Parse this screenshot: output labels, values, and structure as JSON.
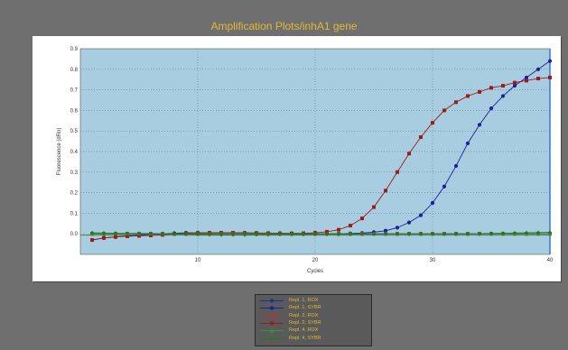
{
  "title": "Amplification Plots/inhA1 gene",
  "colors": {
    "background": "#6f6f6f",
    "plot_area": "#a9cde0",
    "title": "#e2b833"
  },
  "chart_data": {
    "type": "line",
    "title": "Amplification Plots/inhA1 gene",
    "xlabel": "Cycles",
    "ylabel": "Fluorescence (dRn)",
    "xlim": [
      0,
      40
    ],
    "ylim": [
      -0.1,
      0.9
    ],
    "x_ticks": [
      "10",
      "20",
      "30",
      "40"
    ],
    "y_ticks": [
      "0.0",
      "0.1",
      "0.2",
      "0.3",
      "0.4",
      "0.5",
      "0.6",
      "0.7",
      "0.8",
      "0.9"
    ],
    "grid": true,
    "x": [
      1,
      2,
      3,
      4,
      5,
      6,
      7,
      8,
      9,
      10,
      11,
      12,
      13,
      14,
      15,
      16,
      17,
      18,
      19,
      20,
      21,
      22,
      23,
      24,
      25,
      26,
      27,
      28,
      29,
      30,
      31,
      32,
      33,
      34,
      35,
      36,
      37,
      38,
      39,
      40
    ],
    "series": [
      {
        "name": "Repl. 1, ROX",
        "color": "#1f2f9e",
        "marker": "circle",
        "values": [
          0,
          0,
          0,
          0,
          0,
          0,
          0,
          0,
          0,
          0,
          0,
          0,
          0,
          0,
          0,
          0,
          0,
          0,
          0,
          0,
          0,
          0,
          0,
          0,
          0,
          0,
          0,
          0,
          0,
          0,
          0,
          0,
          0,
          0,
          0,
          0,
          0,
          0,
          0,
          0
        ]
      },
      {
        "name": "Repl. 1, SYBR",
        "color": "#1c1f9a",
        "marker": "circle",
        "values": [
          -0.03,
          -0.02,
          -0.015,
          -0.01,
          -0.005,
          -0.002,
          0,
          0.003,
          0.005,
          0.005,
          0.005,
          0.005,
          0.005,
          0.005,
          0.004,
          0.004,
          0.003,
          0.002,
          0.001,
          0,
          0,
          0,
          0.002,
          0.004,
          0.008,
          0.015,
          0.03,
          0.055,
          0.09,
          0.15,
          0.23,
          0.33,
          0.44,
          0.53,
          0.61,
          0.67,
          0.72,
          0.76,
          0.8,
          0.84
        ]
      },
      {
        "name": "Repl. 2, ROX",
        "color": "#b0363a",
        "marker": "square",
        "values": [
          0,
          0,
          0,
          0,
          0,
          0,
          0,
          0,
          0,
          0,
          0,
          0,
          0,
          0,
          0,
          0,
          0,
          0,
          0,
          0,
          0,
          0,
          0,
          0,
          0,
          0,
          0,
          0,
          0,
          0,
          0,
          0,
          0,
          0,
          0,
          0,
          0,
          0,
          0,
          0
        ]
      },
      {
        "name": "Repl. 2, SYBR",
        "color": "#9b1c1f",
        "marker": "square",
        "values": [
          -0.03,
          -0.02,
          -0.015,
          -0.012,
          -0.01,
          -0.008,
          -0.005,
          0,
          0.003,
          0.004,
          0.005,
          0.005,
          0.005,
          0.004,
          0.004,
          0.003,
          0.002,
          0.002,
          0.003,
          0.005,
          0.01,
          0.02,
          0.04,
          0.075,
          0.13,
          0.21,
          0.3,
          0.39,
          0.47,
          0.54,
          0.6,
          0.64,
          0.67,
          0.69,
          0.71,
          0.72,
          0.735,
          0.745,
          0.755,
          0.76
        ]
      },
      {
        "name": "Repl. 4, ROX",
        "color": "#2e9a2e",
        "marker": "triangle",
        "values": [
          0,
          0,
          0,
          0,
          0,
          0,
          0,
          0,
          0,
          0,
          0,
          0,
          0,
          0,
          0,
          0,
          0,
          0,
          0,
          0,
          0,
          0,
          0,
          0,
          0,
          0,
          0,
          0,
          0,
          0,
          0,
          0,
          0,
          0,
          0,
          0,
          0,
          0,
          0,
          0
        ]
      },
      {
        "name": "Repl. 4, SYBR",
        "color": "#1e7a1e",
        "marker": "diamond",
        "values": [
          0.005,
          0.004,
          0.003,
          0.002,
          0.002,
          0.001,
          0,
          -0.001,
          -0.002,
          -0.003,
          -0.004,
          -0.005,
          -0.005,
          -0.005,
          -0.004,
          -0.004,
          -0.003,
          -0.003,
          -0.003,
          -0.002,
          -0.002,
          -0.002,
          -0.002,
          -0.001,
          -0.001,
          0,
          0,
          0,
          0,
          0,
          0,
          0,
          0,
          0.001,
          0.002,
          0.003,
          0.004,
          0.005,
          0.006,
          0.007
        ]
      }
    ],
    "legend": [
      "Repl. 1, ROX",
      "Repl. 1, SYBR",
      "Repl. 2, ROX",
      "Repl. 2, SYBR",
      "Repl. 4, ROX",
      "Repl. 4, SYBR"
    ],
    "legend_placement": "bottom-center"
  }
}
